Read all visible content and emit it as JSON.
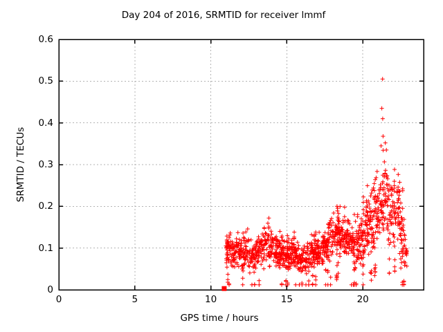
{
  "chart_data": {
    "type": "scatter",
    "title": "Day 204 of 2016, SRMTID for receiver lmmf",
    "xlabel": "GPS time / hours",
    "ylabel": "SRMTID / TECUs",
    "xlim": [
      0,
      24
    ],
    "ylim": [
      0,
      0.6
    ],
    "xticks": {
      "values": [
        0,
        5,
        10,
        15,
        20
      ],
      "labels": [
        "0",
        "5",
        "10",
        "15",
        "20"
      ]
    },
    "yticks": {
      "values": [
        0,
        0.1,
        0.2,
        0.3,
        0.4,
        0.5,
        0.6
      ],
      "labels": [
        "0",
        "0.1",
        "0.2",
        "0.3",
        "0.4",
        "0.5",
        "0.6"
      ]
    },
    "grid": {
      "show": true,
      "color": "#b3b3b3",
      "dash": [
        2,
        3
      ]
    },
    "frame_color": "#000000",
    "background": "#ffffff",
    "legend": "none",
    "series": [
      {
        "name": "SRMTID scatter",
        "marker": "plus",
        "color": "#ff0000",
        "marker_half_px": 3,
        "time_range": [
          11.0,
          22.9
        ],
        "epoch_step_hours": 0.02,
        "seed": 77,
        "band_envelope": [
          [
            11.0,
            0.055,
            0.155
          ],
          [
            11.2,
            0.05,
            0.17
          ],
          [
            11.5,
            0.045,
            0.13
          ],
          [
            11.8,
            0.05,
            0.16
          ],
          [
            12.1,
            0.04,
            0.14
          ],
          [
            12.4,
            0.035,
            0.17
          ],
          [
            12.8,
            0.03,
            0.13
          ],
          [
            13.1,
            0.05,
            0.14
          ],
          [
            13.5,
            0.045,
            0.19
          ],
          [
            13.9,
            0.05,
            0.18
          ],
          [
            14.3,
            0.05,
            0.14
          ],
          [
            14.7,
            0.05,
            0.15
          ],
          [
            15.1,
            0.04,
            0.13
          ],
          [
            15.5,
            0.05,
            0.14
          ],
          [
            15.9,
            0.03,
            0.12
          ],
          [
            16.3,
            0.03,
            0.13
          ],
          [
            16.7,
            0.05,
            0.14
          ],
          [
            17.1,
            0.06,
            0.14
          ],
          [
            17.5,
            0.06,
            0.16
          ],
          [
            17.9,
            0.07,
            0.2
          ],
          [
            18.3,
            0.08,
            0.22
          ],
          [
            18.7,
            0.08,
            0.2
          ],
          [
            19.1,
            0.06,
            0.2
          ],
          [
            19.5,
            0.03,
            0.2
          ],
          [
            19.9,
            0.04,
            0.22
          ],
          [
            20.3,
            0.08,
            0.26
          ],
          [
            20.7,
            0.07,
            0.29
          ],
          [
            21.1,
            0.1,
            0.33
          ],
          [
            21.4,
            0.12,
            0.36
          ],
          [
            21.7,
            0.1,
            0.34
          ],
          [
            22.0,
            0.09,
            0.3
          ],
          [
            22.3,
            0.11,
            0.29
          ],
          [
            22.55,
            0.06,
            0.27
          ],
          [
            22.75,
            0.04,
            0.2
          ],
          [
            22.9,
            0.04,
            0.11
          ]
        ],
        "outliers": [
          [
            21.3,
            0.505
          ],
          [
            21.25,
            0.435
          ],
          [
            21.31,
            0.41
          ],
          [
            21.33,
            0.368
          ],
          [
            21.2,
            0.345
          ],
          [
            21.48,
            0.352
          ],
          [
            21.55,
            0.335
          ],
          [
            22.5,
            0.052
          ],
          [
            22.55,
            0.065
          ],
          [
            22.6,
            0.08
          ],
          [
            22.65,
            0.095
          ]
        ]
      },
      {
        "name": "start marker",
        "marker": "filled-square",
        "color": "#ff0000",
        "marker_size_px": 7,
        "points": [
          [
            10.88,
            0.003
          ]
        ]
      }
    ]
  }
}
